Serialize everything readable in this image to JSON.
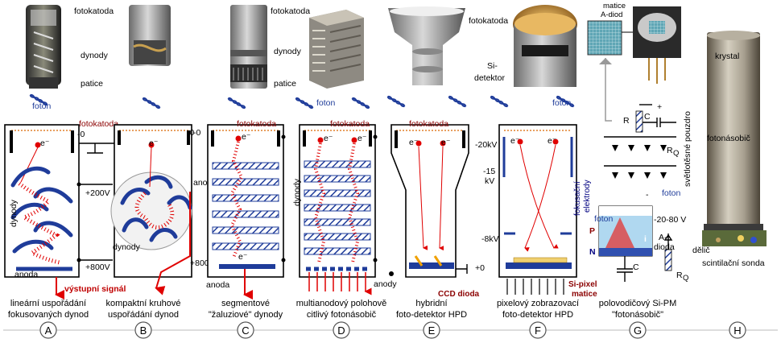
{
  "photo_labels": {
    "fotokatoda_a": "fotokatoda",
    "dynody_a": "dynody",
    "patice_a": "patice",
    "fotokatoda_c": "fotokatoda",
    "dynody_c": "dynody",
    "patice_c": "patice",
    "fotokatoda_e": "fotokatoda",
    "si_detektor_1": "Si-",
    "si_detektor_2": "detektor",
    "matice_1": "matice",
    "matice_2": "A-diod",
    "krystal": "krystal",
    "pouzdro": "světlotěsné pouzdro",
    "fotonasobic": "fotonásobič",
    "delic": "dělič",
    "sonda": "scintilační sonda"
  },
  "diagram_labels": {
    "foton": "foton",
    "fotokatoda": "fotokatoda",
    "electron": "e⁻",
    "v_minus0": "-0",
    "v_200": "+200V",
    "v_800": "+800V",
    "v_800b": "+800",
    "v_minus20kv": "-20kV",
    "v_minus15": "-15",
    "v_kv": "kV",
    "v_minus8kv": "-8kV",
    "v_plus0": "+0",
    "v_minus2080": "-20-80 V",
    "dynody": "dynody",
    "anoda": "anoda",
    "anody": "anody",
    "vystupni_signal": "výstupní signál",
    "ccd_dioda": "CCD dioda",
    "si_pixel_1": "Si-pixel",
    "si_pixel_2": "matice",
    "fokusacni": "fokusační",
    "elektrody": "elektrody",
    "R": "R",
    "C": "C",
    "RQ": "R",
    "Q": "Q",
    "P": "P",
    "N": "N",
    "i": "i",
    "a_dioda_1": "A-",
    "a_dioda_2": "dioda",
    "plus": "+",
    "minus": "-"
  },
  "captions": [
    {
      "letter": "A",
      "line1": "lineární uspořádání",
      "line2": "fokusovaných dynod"
    },
    {
      "letter": "B",
      "line1": "kompaktní kruhové",
      "line2": "uspořádání dynod"
    },
    {
      "letter": "C",
      "line1": "segmentové",
      "line2": "\"žaluziové\" dynody"
    },
    {
      "letter": "D",
      "line1": "multianodový polohově",
      "line2": "citlivý fotonásobič"
    },
    {
      "letter": "E",
      "line1": "hybridní",
      "line2": "foto-detektor HPD"
    },
    {
      "letter": "F",
      "line1": "pixelový zobrazovací",
      "line2": "foto-detektor HPD"
    },
    {
      "letter": "G",
      "line1": "polovodičový Si-PM",
      "line2": "\"fotonásobič\""
    },
    {
      "letter": "H",
      "line1": "",
      "line2": ""
    }
  ],
  "colors": {
    "dynode_blue": "#1f3c9a",
    "beam_red": "#e00000",
    "photocathode_orange": "#e8a060",
    "caption_circle": "#000000"
  }
}
